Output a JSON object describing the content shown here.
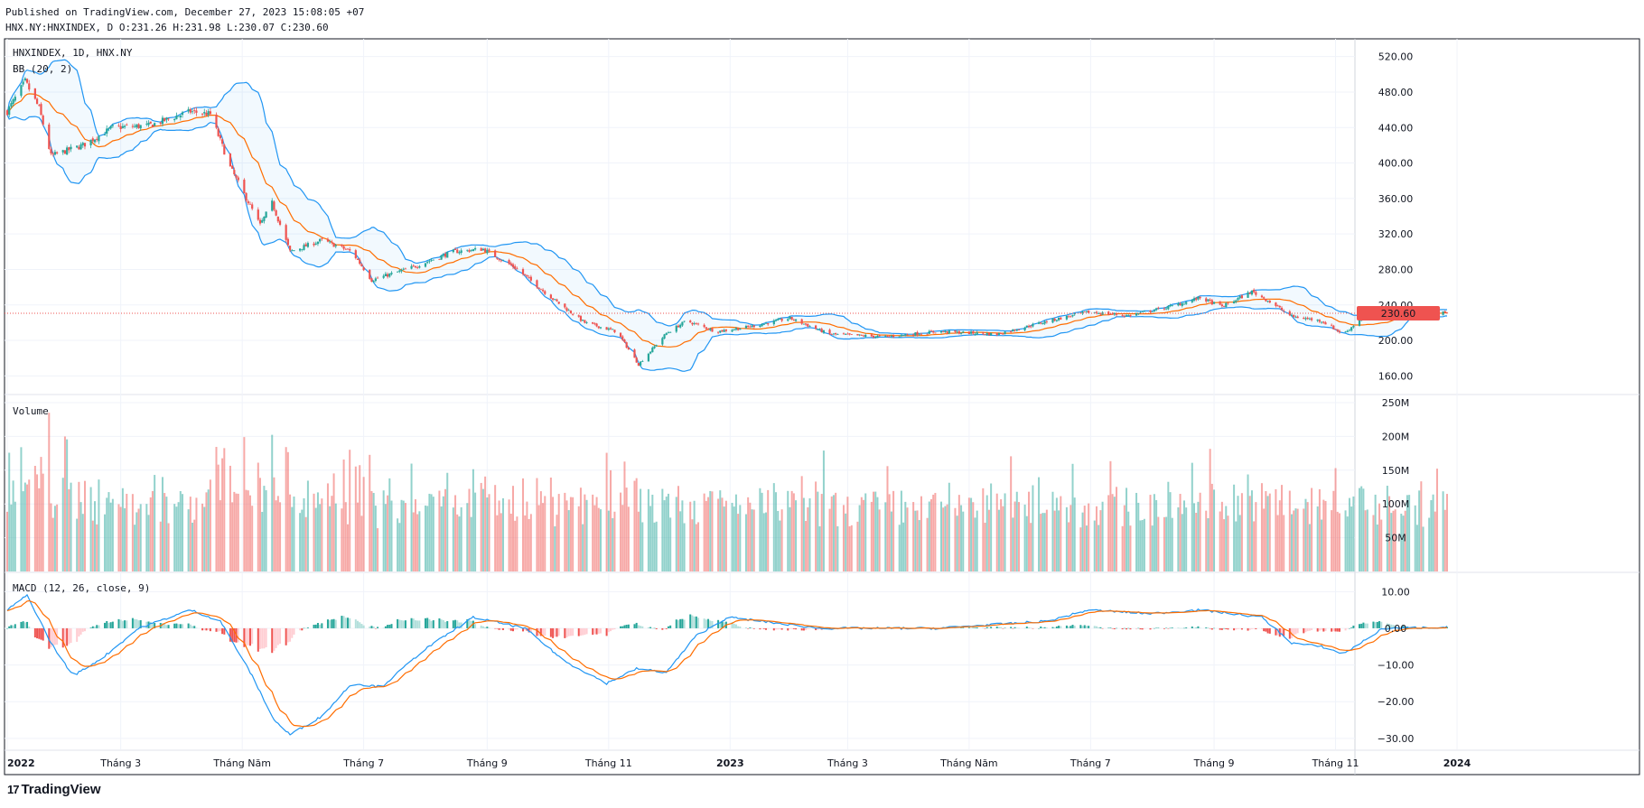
{
  "header": {
    "published": "Published on TradingView.com, December 27, 2023 15:08:05 +07",
    "ohlc": "HNX.NY:HNXINDEX, D O:231.26 H:231.98 L:230.07 C:230.60"
  },
  "brand": {
    "name": "TradingView"
  },
  "colors": {
    "up": "#26a69a",
    "down": "#ef5350",
    "bb": "#2196f3",
    "basis": "#ff6d00",
    "macd": "#2196f3",
    "signal": "#ff6d00"
  },
  "chart_data": [
    {
      "type": "candlestick",
      "title": "HNXINDEX, 1D, HNX.NY",
      "indicator": "BB (20, 2)",
      "ylim": [
        140,
        540
      ],
      "yticks": [
        "520.00",
        "480.00",
        "440.00",
        "400.00",
        "360.00",
        "320.00",
        "280.00",
        "240.00",
        "200.00",
        "160.00"
      ],
      "last_price": "230.60",
      "x_ticks": [
        "2022",
        "Tháng 3",
        "Tháng Năm",
        "Tháng 7",
        "Tháng 9",
        "Tháng 11",
        "2023",
        "Tháng 3",
        "Tháng Năm",
        "Tháng 7",
        "Tháng 9",
        "Tháng 11",
        "2024"
      ],
      "close_path": [
        {
          "date": "2022-01-03",
          "close": 458
        },
        {
          "date": "2022-01-12",
          "close": 492
        },
        {
          "date": "2022-01-19",
          "close": 462
        },
        {
          "date": "2022-01-25",
          "close": 408
        },
        {
          "date": "2022-02-10",
          "close": 420
        },
        {
          "date": "2022-02-25",
          "close": 440
        },
        {
          "date": "2022-03-15",
          "close": 442
        },
        {
          "date": "2022-04-05",
          "close": 458
        },
        {
          "date": "2022-04-15",
          "close": 455
        },
        {
          "date": "2022-04-25",
          "close": 395
        },
        {
          "date": "2022-05-10",
          "close": 330
        },
        {
          "date": "2022-05-16",
          "close": 355
        },
        {
          "date": "2022-05-25",
          "close": 300
        },
        {
          "date": "2022-06-10",
          "close": 313
        },
        {
          "date": "2022-06-25",
          "close": 300
        },
        {
          "date": "2022-07-05",
          "close": 268
        },
        {
          "date": "2022-07-25",
          "close": 282
        },
        {
          "date": "2022-08-15",
          "close": 300
        },
        {
          "date": "2022-08-30",
          "close": 303
        },
        {
          "date": "2022-09-15",
          "close": 282
        },
        {
          "date": "2022-10-05",
          "close": 245
        },
        {
          "date": "2022-10-20",
          "close": 220
        },
        {
          "date": "2022-11-05",
          "close": 210
        },
        {
          "date": "2022-11-16",
          "close": 173
        },
        {
          "date": "2022-11-30",
          "close": 208
        },
        {
          "date": "2022-12-10",
          "close": 222
        },
        {
          "date": "2022-12-25",
          "close": 210
        },
        {
          "date": "2023-01-10",
          "close": 215
        },
        {
          "date": "2023-01-31",
          "close": 225
        },
        {
          "date": "2023-02-20",
          "close": 207
        },
        {
          "date": "2023-03-20",
          "close": 204
        },
        {
          "date": "2023-04-15",
          "close": 210
        },
        {
          "date": "2023-05-15",
          "close": 207
        },
        {
          "date": "2023-06-10",
          "close": 222
        },
        {
          "date": "2023-06-30",
          "close": 232
        },
        {
          "date": "2023-07-20",
          "close": 228
        },
        {
          "date": "2023-08-10",
          "close": 238
        },
        {
          "date": "2023-08-25",
          "close": 248
        },
        {
          "date": "2023-09-05",
          "close": 238
        },
        {
          "date": "2023-09-20",
          "close": 255
        },
        {
          "date": "2023-09-28",
          "close": 245
        },
        {
          "date": "2023-10-10",
          "close": 227
        },
        {
          "date": "2023-10-25",
          "close": 222
        },
        {
          "date": "2023-11-05",
          "close": 207
        },
        {
          "date": "2023-11-15",
          "close": 227
        },
        {
          "date": "2023-11-30",
          "close": 228
        },
        {
          "date": "2023-12-10",
          "close": 233
        },
        {
          "date": "2023-12-27",
          "close": 230.6
        }
      ]
    },
    {
      "type": "bar",
      "title": "Volume",
      "ylim": [
        0,
        250
      ],
      "yticks": [
        "250M",
        "200M",
        "150M",
        "100M",
        "50M"
      ]
    },
    {
      "type": "line",
      "title": "MACD (12, 26, close, 9)",
      "ylim": [
        -33,
        15
      ],
      "yticks": [
        "10.00",
        "0.00",
        "−10.00",
        "−20.00",
        "−30.00"
      ],
      "macd_path": [
        {
          "date": "2022-01-03",
          "v": 5
        },
        {
          "date": "2022-01-13",
          "v": 9
        },
        {
          "date": "2022-01-25",
          "v": -4
        },
        {
          "date": "2022-02-05",
          "v": -13
        },
        {
          "date": "2022-02-20",
          "v": -8
        },
        {
          "date": "2022-03-10",
          "v": 0
        },
        {
          "date": "2022-04-05",
          "v": 5
        },
        {
          "date": "2022-04-20",
          "v": 2
        },
        {
          "date": "2022-05-05",
          "v": -12
        },
        {
          "date": "2022-05-17",
          "v": -25
        },
        {
          "date": "2022-05-25",
          "v": -29
        },
        {
          "date": "2022-06-10",
          "v": -24
        },
        {
          "date": "2022-06-25",
          "v": -15
        },
        {
          "date": "2022-07-10",
          "v": -16
        },
        {
          "date": "2022-07-31",
          "v": -6
        },
        {
          "date": "2022-08-25",
          "v": 3
        },
        {
          "date": "2022-09-20",
          "v": 0
        },
        {
          "date": "2022-10-10",
          "v": -9
        },
        {
          "date": "2022-10-31",
          "v": -15
        },
        {
          "date": "2022-11-15",
          "v": -11
        },
        {
          "date": "2022-11-30",
          "v": -12
        },
        {
          "date": "2022-12-15",
          "v": -2
        },
        {
          "date": "2022-12-31",
          "v": 3
        },
        {
          "date": "2023-02-15",
          "v": 0
        },
        {
          "date": "2023-04-15",
          "v": 0
        },
        {
          "date": "2023-06-10",
          "v": 2
        },
        {
          "date": "2023-06-30",
          "v": 5
        },
        {
          "date": "2023-07-31",
          "v": 4
        },
        {
          "date": "2023-08-25",
          "v": 5
        },
        {
          "date": "2023-09-10",
          "v": 4
        },
        {
          "date": "2023-09-25",
          "v": 3
        },
        {
          "date": "2023-10-10",
          "v": -4
        },
        {
          "date": "2023-10-25",
          "v": -5
        },
        {
          "date": "2023-11-05",
          "v": -7
        },
        {
          "date": "2023-11-25",
          "v": 0
        },
        {
          "date": "2023-12-27",
          "v": 0.3
        }
      ]
    }
  ]
}
